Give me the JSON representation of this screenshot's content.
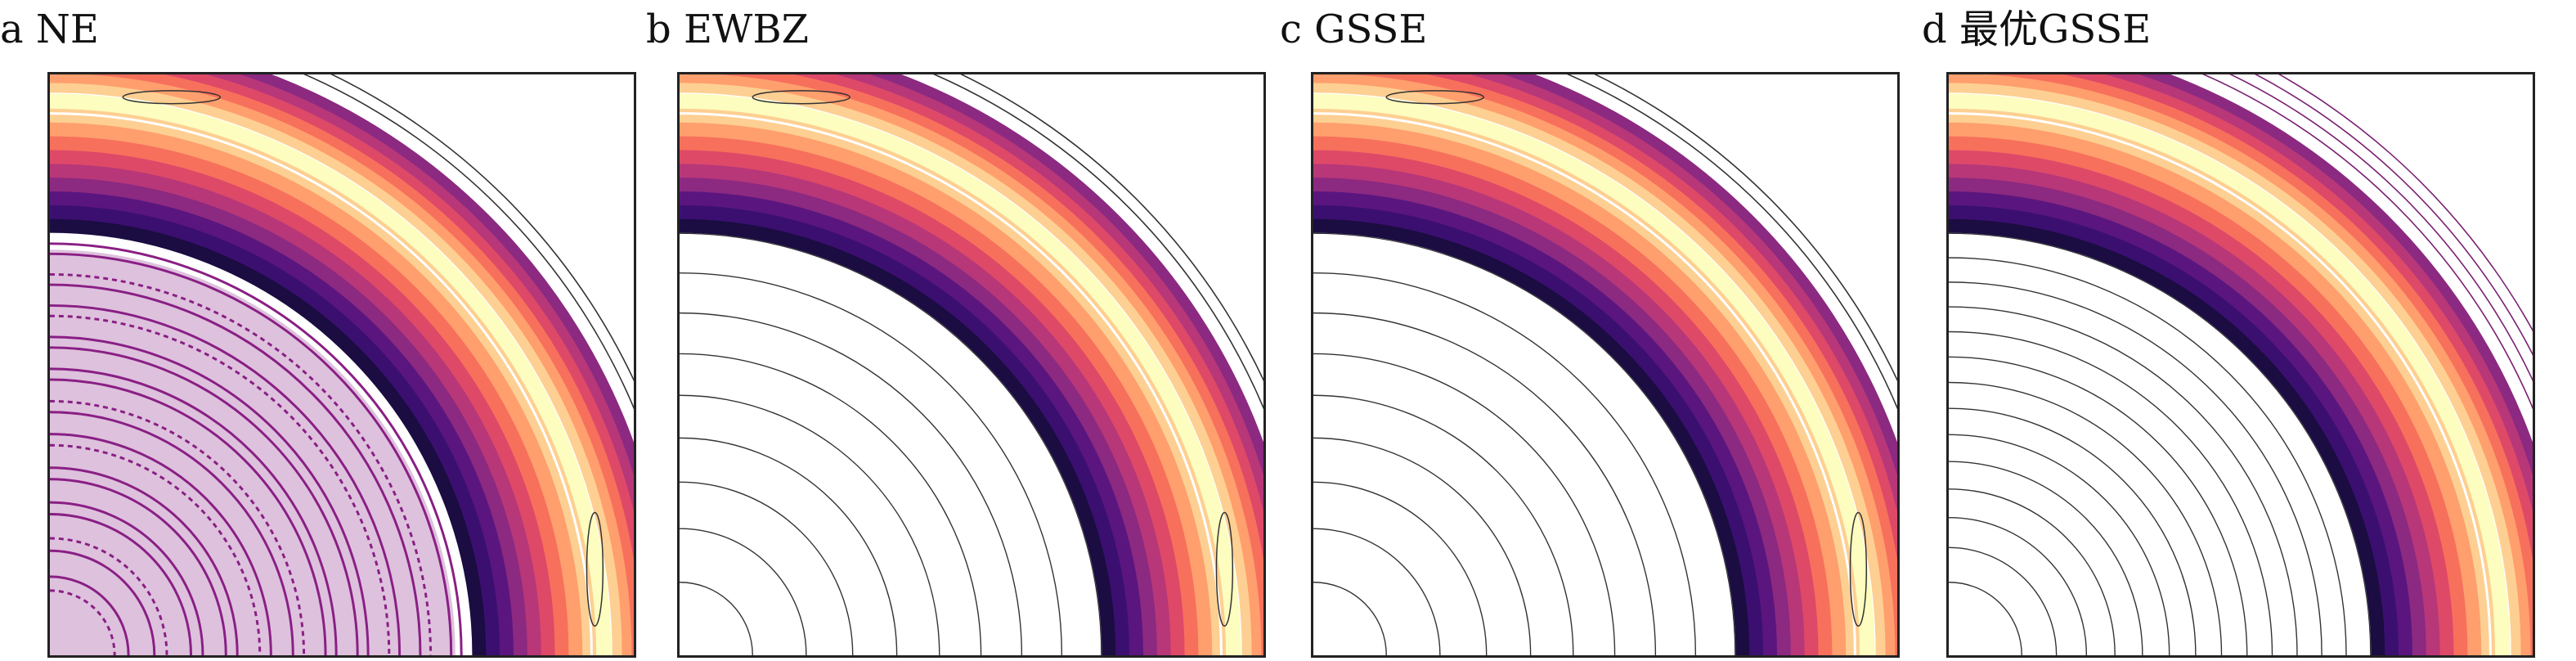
{
  "figure": {
    "panels": [
      {
        "id": "a",
        "letter": "a",
        "title": "NE",
        "noise": "strong"
      },
      {
        "id": "b",
        "letter": "b",
        "title": "EWBZ",
        "noise": "weak"
      },
      {
        "id": "c",
        "letter": "c",
        "title": "GSSE",
        "noise": "weak"
      },
      {
        "id": "d",
        "letter": "d",
        "title": "最优GSSE",
        "noise": "minimal"
      }
    ],
    "colors": {
      "band": [
        "#1b0c41",
        "#3b0f70",
        "#5a167e",
        "#8c2981",
        "#b73779",
        "#de4968",
        "#f7705c",
        "#fe9f6d",
        "#fecf92",
        "#fcfdbf"
      ],
      "contour": "#333333",
      "noise": "#8a1f84",
      "frame": "#222222"
    }
  }
}
